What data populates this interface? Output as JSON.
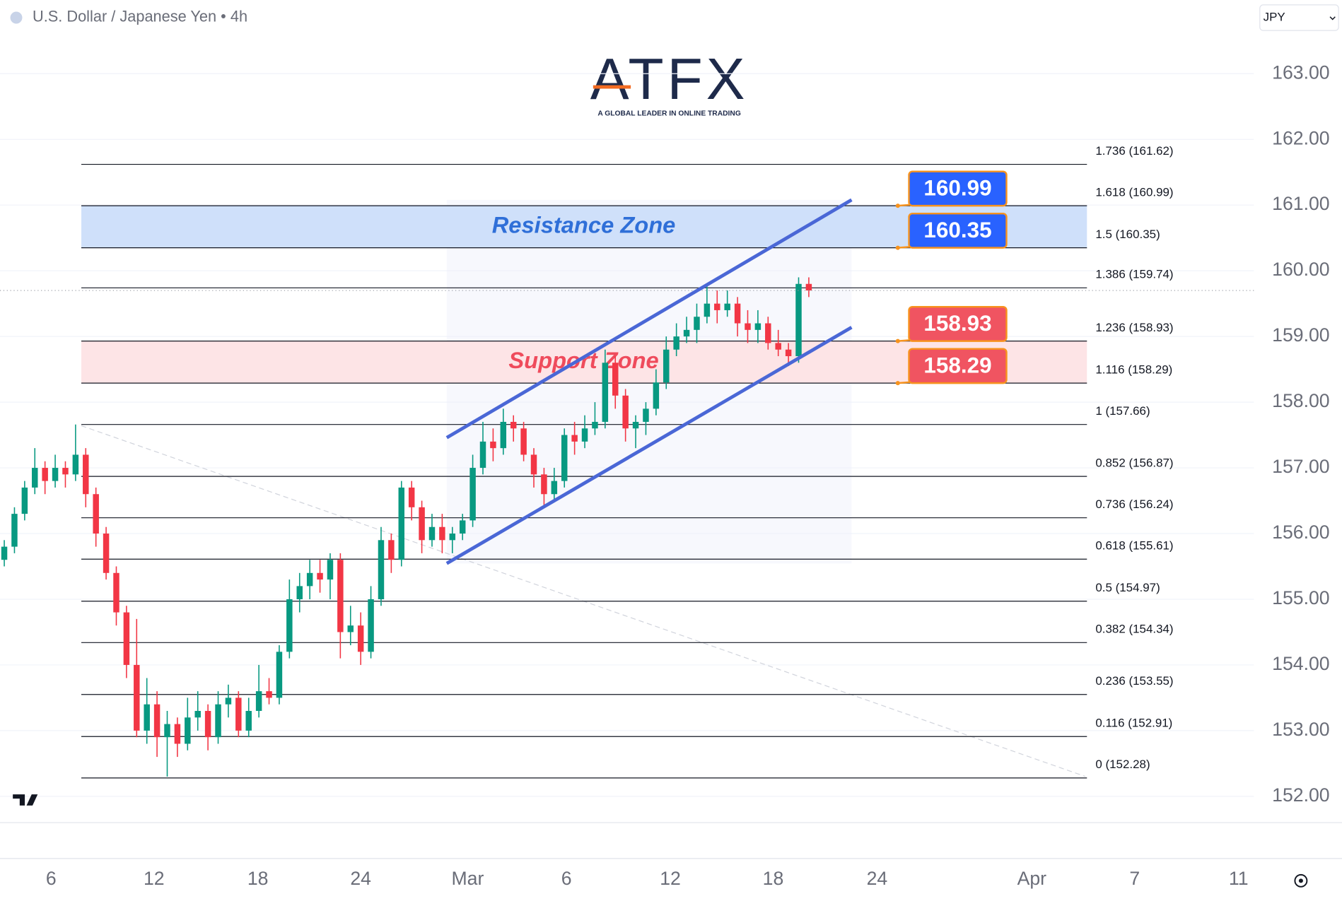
{
  "header": {
    "title": "U.S. Dollar / Japanese Yen • 4h",
    "currency": "JPY"
  },
  "logo": {
    "name": "ATFX",
    "tagline": "A GLOBAL LEADER IN ONLINE TRADING"
  },
  "chart_data": {
    "type": "candlestick",
    "x": [
      0,
      1,
      2,
      3,
      4,
      5,
      6,
      7,
      8,
      9,
      10,
      11,
      12,
      13,
      14,
      15,
      16,
      17,
      18,
      19,
      20,
      21,
      22,
      23,
      24,
      25,
      26,
      27,
      28,
      29,
      30,
      31,
      32,
      33,
      34,
      35,
      36,
      37,
      38,
      39,
      40,
      41,
      42,
      43,
      44,
      45,
      46,
      47,
      48,
      49,
      50,
      51,
      52,
      53,
      54,
      55,
      56,
      57,
      58,
      59,
      60,
      61,
      62,
      63,
      64,
      65,
      66,
      67,
      68,
      69,
      70,
      71,
      72,
      73,
      74,
      75,
      76,
      77,
      78,
      79
    ],
    "open": [
      155.6,
      155.8,
      156.3,
      156.7,
      157.0,
      156.8,
      157.0,
      156.9,
      157.2,
      156.6,
      156.0,
      155.4,
      154.8,
      154.0,
      153.0,
      153.4,
      152.9,
      153.1,
      152.8,
      153.2,
      153.3,
      152.9,
      153.4,
      153.5,
      153.0,
      153.3,
      153.6,
      153.5,
      154.2,
      155.0,
      155.2,
      155.4,
      155.3,
      155.6,
      154.5,
      154.6,
      154.2,
      155.0,
      155.9,
      155.6,
      156.7,
      156.4,
      155.9,
      156.1,
      155.9,
      156.0,
      156.2,
      157.0,
      157.4,
      157.3,
      157.7,
      157.6,
      157.2,
      156.9,
      156.6,
      156.8,
      157.5,
      157.4,
      157.6,
      157.7,
      158.6,
      158.1,
      157.6,
      157.7,
      157.9,
      158.3,
      158.8,
      159.0,
      159.1,
      159.3,
      159.5,
      159.4,
      159.5,
      159.2,
      159.1,
      159.2,
      158.9,
      158.8,
      158.7,
      159.8
    ],
    "high": [
      155.9,
      156.4,
      156.8,
      157.3,
      157.1,
      157.2,
      157.1,
      157.66,
      157.3,
      156.7,
      156.1,
      155.5,
      154.9,
      154.7,
      153.8,
      153.6,
      153.3,
      153.2,
      153.5,
      153.6,
      153.4,
      153.6,
      153.7,
      153.6,
      153.5,
      154.0,
      153.8,
      154.3,
      155.3,
      155.4,
      155.6,
      155.6,
      155.7,
      155.7,
      154.9,
      154.8,
      155.2,
      156.1,
      156.0,
      156.8,
      156.8,
      156.5,
      156.3,
      156.3,
      156.1,
      156.3,
      157.2,
      157.7,
      157.6,
      157.9,
      157.8,
      157.7,
      157.3,
      157.0,
      157.0,
      157.6,
      157.7,
      157.8,
      158.0,
      158.8,
      158.7,
      158.2,
      157.8,
      158.0,
      158.5,
      159.0,
      159.2,
      159.3,
      159.5,
      159.8,
      159.7,
      159.7,
      159.6,
      159.4,
      159.4,
      159.3,
      159.1,
      158.9,
      159.9,
      159.9
    ],
    "low": [
      155.5,
      155.7,
      156.2,
      156.6,
      156.6,
      156.7,
      156.7,
      156.8,
      156.4,
      155.8,
      155.3,
      154.6,
      153.8,
      152.9,
      152.8,
      152.6,
      152.3,
      152.6,
      152.7,
      153.0,
      152.7,
      152.8,
      153.2,
      152.9,
      152.9,
      153.2,
      153.4,
      153.4,
      154.1,
      154.8,
      155.0,
      155.1,
      155.0,
      154.1,
      154.3,
      154.0,
      154.1,
      154.9,
      155.4,
      155.5,
      156.2,
      155.7,
      155.8,
      155.7,
      155.7,
      155.9,
      156.1,
      156.9,
      157.1,
      157.2,
      157.4,
      157.1,
      156.7,
      156.4,
      156.5,
      156.7,
      157.2,
      157.3,
      157.5,
      157.6,
      157.9,
      157.4,
      157.3,
      157.5,
      157.8,
      158.2,
      158.7,
      158.9,
      158.9,
      159.2,
      159.2,
      159.3,
      159.0,
      158.9,
      158.9,
      158.8,
      158.7,
      158.55,
      158.6,
      159.6
    ],
    "close": [
      155.8,
      156.3,
      156.7,
      157.0,
      156.8,
      157.0,
      156.9,
      157.2,
      156.6,
      156.0,
      155.4,
      154.8,
      154.0,
      153.0,
      153.4,
      152.9,
      153.1,
      152.8,
      153.2,
      153.3,
      152.9,
      153.4,
      153.5,
      153.0,
      153.3,
      153.6,
      153.5,
      154.2,
      155.0,
      155.2,
      155.4,
      155.3,
      155.6,
      154.5,
      154.6,
      154.2,
      155.0,
      155.9,
      155.6,
      156.7,
      156.4,
      155.9,
      156.1,
      155.9,
      156.0,
      156.2,
      157.0,
      157.4,
      157.3,
      157.7,
      157.6,
      157.2,
      156.9,
      156.6,
      156.8,
      157.5,
      157.4,
      157.6,
      157.7,
      158.6,
      158.1,
      157.6,
      157.7,
      157.9,
      158.3,
      158.8,
      159.0,
      159.1,
      159.3,
      159.5,
      159.4,
      159.5,
      159.2,
      159.1,
      159.2,
      158.9,
      158.8,
      158.7,
      159.8,
      159.7
    ],
    "up_color": "#089981",
    "down_color": "#f23645",
    "xlim": [
      -0.42,
      122.7
    ],
    "xticks": [
      {
        "value": 4.6,
        "label": "6"
      },
      {
        "value": 14.7,
        "label": "12"
      },
      {
        "value": 24.9,
        "label": "18"
      },
      {
        "value": 35.0,
        "label": "24"
      },
      {
        "value": 45.5,
        "label": "Mar"
      },
      {
        "value": 55.2,
        "label": "6"
      },
      {
        "value": 65.4,
        "label": "12"
      },
      {
        "value": 75.5,
        "label": "18"
      },
      {
        "value": 85.7,
        "label": "24"
      },
      {
        "value": 100.9,
        "label": "Apr"
      },
      {
        "value": 111.0,
        "label": "7"
      },
      {
        "value": 121.2,
        "label": "11"
      }
    ],
    "ylim": [
      151.6,
      164.1
    ],
    "yticks": [
      {
        "value": 163,
        "label": "163.00"
      },
      {
        "value": 162,
        "label": "162.00"
      },
      {
        "value": 161,
        "label": "161.00"
      },
      {
        "value": 160,
        "label": "160.00"
      },
      {
        "value": 159,
        "label": "159.00"
      },
      {
        "value": 158,
        "label": "158.00"
      },
      {
        "value": 157,
        "label": "157.00"
      },
      {
        "value": 156,
        "label": "156.00"
      },
      {
        "value": 155,
        "label": "155.00"
      },
      {
        "value": 154,
        "label": "154.00"
      },
      {
        "value": 153,
        "label": "153.00"
      },
      {
        "value": 152,
        "label": "152.00"
      }
    ],
    "grid": true,
    "levels": [
      {
        "value": 161.62,
        "label": "1.736 (161.62)"
      },
      {
        "value": 160.99,
        "label": "1.618 (160.99)"
      },
      {
        "value": 160.35,
        "label": "1.5 (160.35)"
      },
      {
        "value": 159.74,
        "label": "1.386 (159.74)"
      },
      {
        "value": 158.93,
        "label": "1.236 (158.93)"
      },
      {
        "value": 158.29,
        "label": "1.116 (158.29)"
      },
      {
        "value": 157.66,
        "label": "1 (157.66)"
      },
      {
        "value": 156.87,
        "label": "0.852 (156.87)"
      },
      {
        "value": 156.24,
        "label": "0.736 (156.24)"
      },
      {
        "value": 155.61,
        "label": "0.618 (155.61)"
      },
      {
        "value": 154.97,
        "label": "0.5 (154.97)"
      },
      {
        "value": 154.34,
        "label": "0.382 (154.34)"
      },
      {
        "value": 153.55,
        "label": "0.236 (153.55)"
      },
      {
        "value": 152.91,
        "label": "0.116 (152.91)"
      },
      {
        "value": 152.28,
        "label": "0 (152.28)"
      }
    ],
    "zones": [
      {
        "name": "Resistance Zone",
        "from": 160.35,
        "to": 160.99,
        "color": "#cfe0fa",
        "text_color": "#2f6fd8"
      },
      {
        "name": "Support Zone",
        "from": 158.29,
        "to": 158.93,
        "color": "#fde4e6",
        "text_color": "#ef4b5c"
      }
    ],
    "price_tags": [
      {
        "value": 160.99,
        "color": "#2962ff"
      },
      {
        "value": 160.35,
        "color": "#2962ff"
      },
      {
        "value": 158.93,
        "color": "#f05461"
      },
      {
        "value": 158.29,
        "color": "#f05461"
      }
    ]
  }
}
